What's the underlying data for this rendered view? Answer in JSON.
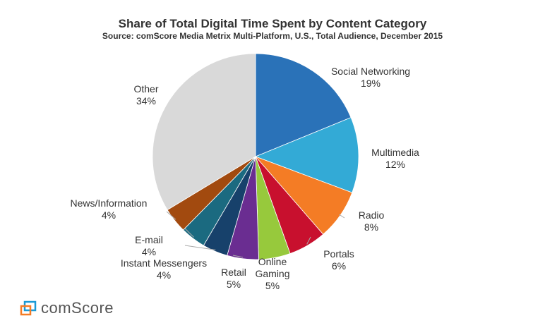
{
  "chart_data": {
    "type": "pie",
    "title": "Share of Total Digital Time Spent by Content Category",
    "subtitle": "Source: comScore Media Metrix Multi-Platform, U.S., Total Audience, December 2015",
    "start_angle": "12 o'clock, clockwise",
    "slices": [
      {
        "label": "Social Networking",
        "value": 19,
        "value_label": "19%",
        "color": "#2a72b8"
      },
      {
        "label": "Multimedia",
        "value": 12,
        "value_label": "12%",
        "color": "#33aad6"
      },
      {
        "label": "Radio",
        "value": 8,
        "value_label": "8%",
        "color": "#f47c25"
      },
      {
        "label": "Portals",
        "value": 6,
        "value_label": "6%",
        "color": "#c8102e"
      },
      {
        "label": "Online Gaming",
        "value": 5,
        "value_label": "5%",
        "color": "#97c93c"
      },
      {
        "label": "Retail",
        "value": 5,
        "value_label": "5%",
        "color": "#6a2d91"
      },
      {
        "label": "Instant Messengers",
        "value": 4,
        "value_label": "4%",
        "color": "#17416b"
      },
      {
        "label": "E-mail",
        "value": 4,
        "value_label": "4%",
        "color": "#1b6a80"
      },
      {
        "label": "News/Information",
        "value": 4,
        "value_label": "4%",
        "color": "#a24a0f"
      },
      {
        "label": "Other",
        "value": 34,
        "value_label": "34%",
        "color": "#d9d9d9"
      }
    ]
  },
  "logo": {
    "text": "comScore",
    "colors": [
      "#1a9ad6",
      "#f47c25"
    ]
  }
}
